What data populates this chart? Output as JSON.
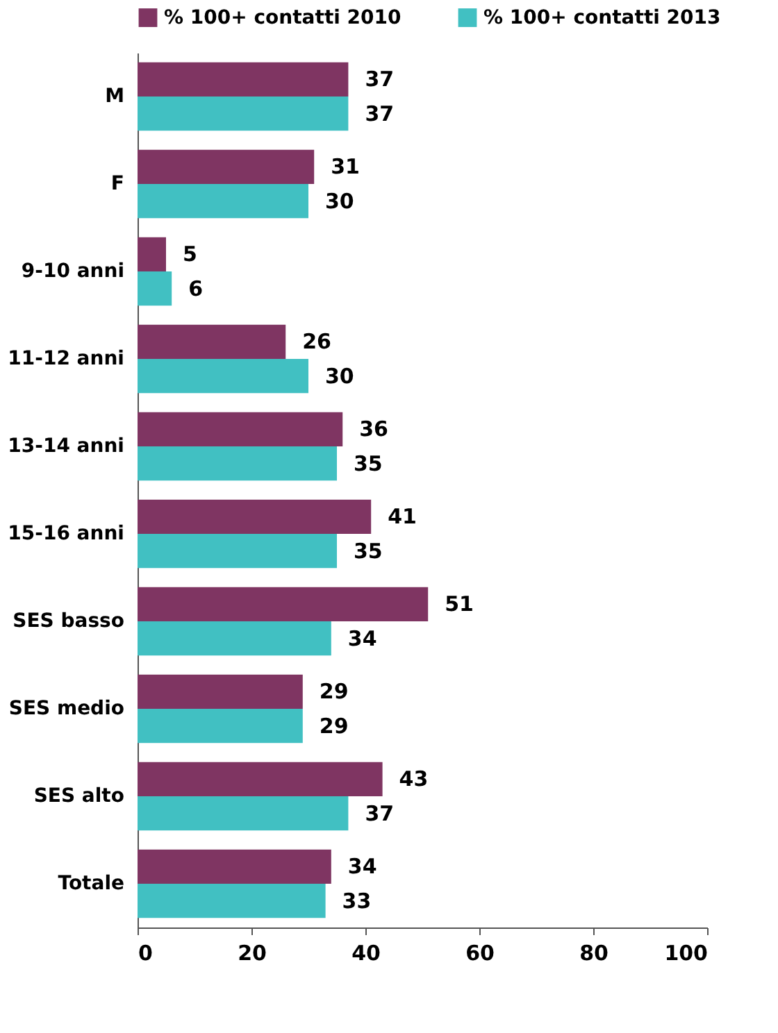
{
  "chart_data": {
    "type": "bar",
    "orientation": "horizontal",
    "categories": [
      "M",
      "F",
      "9-10 anni",
      "11-12 anni",
      "13-14 anni",
      "15-16 anni",
      "SES basso",
      "SES medio",
      "SES alto",
      "Totale"
    ],
    "series": [
      {
        "name": "% 100+ contatti 2010",
        "color": "#7f3562",
        "values": [
          37,
          31,
          5,
          26,
          36,
          41,
          51,
          29,
          43,
          34
        ]
      },
      {
        "name": "% 100+ contatti 2013",
        "color": "#41c0c2",
        "values": [
          37,
          30,
          6,
          30,
          35,
          35,
          34,
          29,
          37,
          33
        ]
      }
    ],
    "xlim": [
      0,
      100
    ],
    "xticks": [
      0,
      20,
      40,
      60,
      80,
      100
    ],
    "data_labels": true,
    "legend": "top",
    "grid": false
  }
}
